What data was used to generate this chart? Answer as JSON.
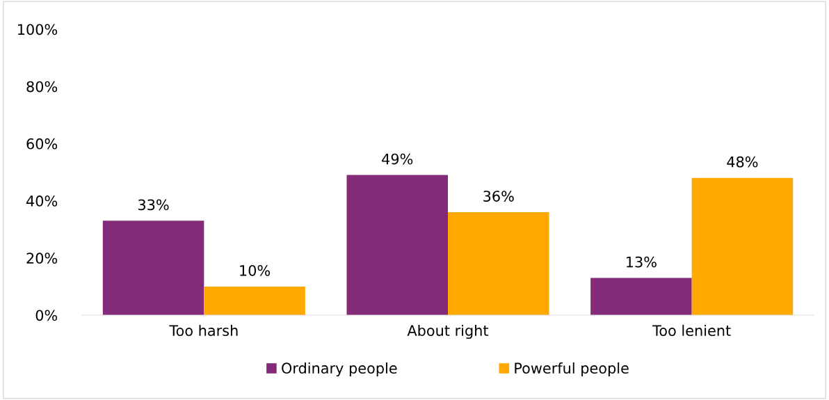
{
  "chart_data": {
    "type": "bar",
    "categories": [
      "Too harsh",
      "About right",
      "Too lenient"
    ],
    "series": [
      {
        "name": "Ordinary people",
        "color": "#832a78",
        "values": [
          33,
          49,
          13
        ],
        "value_labels": [
          "33%",
          "49%",
          "13%"
        ]
      },
      {
        "name": "Powerful people",
        "color": "#ffa800",
        "values": [
          10,
          36,
          48
        ],
        "value_labels": [
          "10%",
          "36%",
          "48%"
        ]
      }
    ],
    "ylim": [
      0,
      100
    ],
    "yticks": [
      {
        "value": 0,
        "label": "0%"
      },
      {
        "value": 20,
        "label": "20%"
      },
      {
        "value": 40,
        "label": "40%"
      },
      {
        "value": 60,
        "label": "60%"
      },
      {
        "value": 80,
        "label": "80%"
      },
      {
        "value": 100,
        "label": "100%"
      }
    ],
    "grid": false,
    "legend": "bottom"
  }
}
